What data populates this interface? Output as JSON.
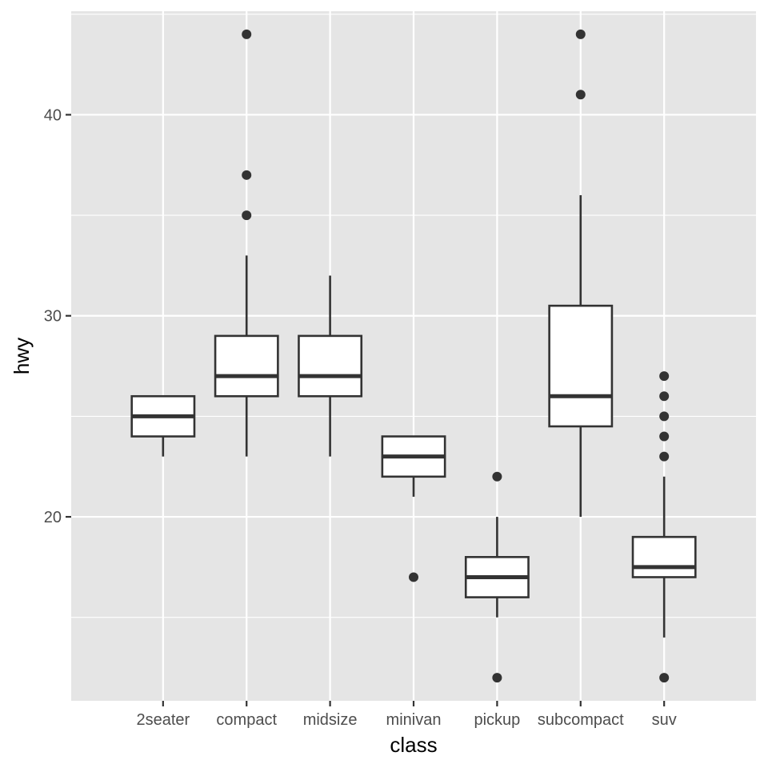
{
  "chart_data": {
    "type": "box",
    "xlabel": "class",
    "ylabel": "hwy",
    "ylim": [
      10.85,
      45.15
    ],
    "yticks": [
      20,
      30,
      40
    ],
    "ytick_labels": [
      "20",
      "30",
      "40"
    ],
    "categories": [
      "2seater",
      "compact",
      "midsize",
      "minivan",
      "pickup",
      "subcompact",
      "suv"
    ],
    "boxes": [
      {
        "category": "2seater",
        "whisker_low": 23,
        "q1": 24,
        "median": 25,
        "q3": 26,
        "whisker_high": 26,
        "outliers": []
      },
      {
        "category": "compact",
        "whisker_low": 23,
        "q1": 26,
        "median": 27,
        "q3": 29,
        "whisker_high": 33,
        "outliers": [
          35,
          37,
          44
        ]
      },
      {
        "category": "midsize",
        "whisker_low": 23,
        "q1": 26,
        "median": 27,
        "q3": 29,
        "whisker_high": 32,
        "outliers": []
      },
      {
        "category": "minivan",
        "whisker_low": 21,
        "q1": 22,
        "median": 23,
        "q3": 24,
        "whisker_high": 24,
        "outliers": [
          17
        ]
      },
      {
        "category": "pickup",
        "whisker_low": 15,
        "q1": 16,
        "median": 17,
        "q3": 18,
        "whisker_high": 20,
        "outliers": [
          12,
          22
        ]
      },
      {
        "category": "subcompact",
        "whisker_low": 20,
        "q1": 24.5,
        "median": 26,
        "q3": 30.5,
        "whisker_high": 36,
        "outliers": [
          41,
          44
        ]
      },
      {
        "category": "suv",
        "whisker_low": 14,
        "q1": 17,
        "median": 17.5,
        "q3": 19,
        "whisker_high": 22,
        "outliers": [
          12,
          23,
          24,
          25,
          26,
          27
        ]
      }
    ],
    "colors": {
      "panel_background": "#e5e5e5",
      "grid_line": "#ffffff",
      "box_fill": "#ffffff",
      "box_line": "#333333",
      "outlier": "#333333",
      "tick_text": "#4d4d4d",
      "title_text": "#000000"
    },
    "grid": true
  }
}
